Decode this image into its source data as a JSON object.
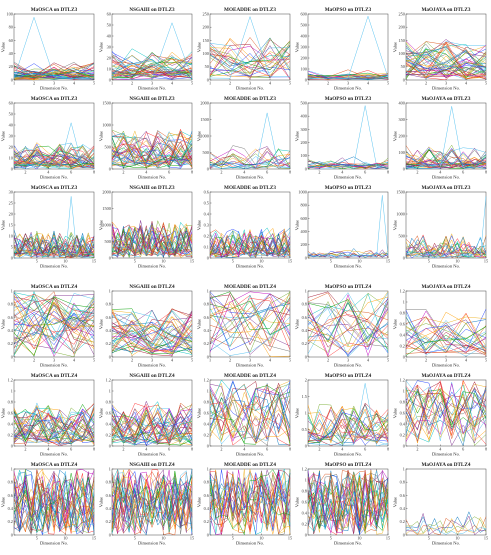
{
  "chart_data": {
    "type": "line",
    "xlabel": "Dimension No.",
    "ylabel": "Value",
    "colors": [
      "#0072BD",
      "#D95319",
      "#EDB120",
      "#7E2F8E",
      "#77AC30",
      "#4DBEEE",
      "#A2142F",
      "#1f3fff",
      "#ff3030",
      "#00a000",
      "#ff9f00",
      "#00c0c0",
      "#c000c0",
      "#707070"
    ],
    "panels": [
      {
        "title": "MaOSCA on DTLZ3",
        "row": 0,
        "col": 0,
        "dims": 5,
        "ylim": [
          0,
          100
        ],
        "yticks": [
          0,
          20,
          40,
          60,
          80,
          100
        ],
        "xticks": [
          1,
          2,
          3,
          4,
          5
        ],
        "n_series": 40,
        "spread": 0.25,
        "spikes": [
          {
            "x": 2,
            "y": 95
          }
        ]
      },
      {
        "title": "NSGAIII on DTLZ3",
        "row": 0,
        "col": 1,
        "dims": 5,
        "ylim": [
          0,
          60
        ],
        "yticks": [
          0,
          10,
          20,
          30,
          40,
          50,
          60
        ],
        "xticks": [
          1,
          2,
          3,
          4,
          5
        ],
        "n_series": 40,
        "spread": 0.4,
        "spikes": [
          {
            "x": 4,
            "y": 52
          }
        ]
      },
      {
        "title": "MOEADDE on DTLZ3",
        "row": 0,
        "col": 2,
        "dims": 5,
        "ylim": [
          0,
          250
        ],
        "yticks": [
          0,
          50,
          100,
          150,
          200,
          250
        ],
        "xticks": [
          1,
          2,
          3,
          4,
          5
        ],
        "n_series": 25,
        "spread": 0.6,
        "spikes": [
          {
            "x": 3,
            "y": 240
          }
        ]
      },
      {
        "title": "MaOPSO on DTLZ3",
        "row": 0,
        "col": 3,
        "dims": 5,
        "ylim": [
          0,
          600
        ],
        "yticks": [
          0,
          100,
          200,
          300,
          400,
          500,
          600
        ],
        "xticks": [
          1,
          2,
          3,
          4,
          5
        ],
        "n_series": 20,
        "spread": 0.12,
        "spikes": [
          {
            "x": 4,
            "y": 580
          }
        ]
      },
      {
        "title": "MaOJAYA on DTLZ3",
        "row": 0,
        "col": 4,
        "dims": 5,
        "ylim": [
          0,
          250
        ],
        "yticks": [
          0,
          50,
          100,
          150,
          200,
          250
        ],
        "xticks": [
          1,
          2,
          3,
          4,
          5
        ],
        "n_series": 45,
        "spread": 0.55,
        "spikes": []
      },
      {
        "title": "MaOSCA on DTLZ3",
        "row": 1,
        "col": 0,
        "dims": 8,
        "ylim": [
          0,
          60
        ],
        "yticks": [
          0,
          10,
          20,
          30,
          40,
          50,
          60
        ],
        "xticks": [
          2,
          4,
          6,
          8
        ],
        "n_series": 40,
        "spread": 0.35,
        "spikes": [
          {
            "x": 6,
            "y": 42
          }
        ]
      },
      {
        "title": "NSGAIII on DTLZ3",
        "row": 1,
        "col": 1,
        "dims": 8,
        "ylim": [
          0,
          1500
        ],
        "yticks": [
          0,
          500,
          1000,
          1500
        ],
        "xticks": [
          2,
          4,
          6,
          8
        ],
        "n_series": 40,
        "spread": 0.55,
        "spikes": []
      },
      {
        "title": "MOEADDE on DTLZ3",
        "row": 1,
        "col": 2,
        "dims": 8,
        "ylim": [
          0,
          2000
        ],
        "yticks": [
          0,
          500,
          1000,
          1500,
          2000
        ],
        "xticks": [
          2,
          4,
          6,
          8
        ],
        "n_series": 15,
        "spread": 0.3,
        "spikes": [
          {
            "x": 6,
            "y": 1700
          }
        ]
      },
      {
        "title": "MaOPSO on DTLZ3",
        "row": 1,
        "col": 3,
        "dims": 8,
        "ylim": [
          0,
          500
        ],
        "yticks": [
          0,
          100,
          200,
          300,
          400,
          500
        ],
        "xticks": [
          2,
          4,
          6,
          8
        ],
        "n_series": 15,
        "spread": 0.15,
        "spikes": [
          {
            "x": 6,
            "y": 480
          }
        ]
      },
      {
        "title": "MaOJAYA on DTLZ3",
        "row": 1,
        "col": 4,
        "dims": 8,
        "ylim": [
          0,
          400
        ],
        "yticks": [
          0,
          100,
          200,
          300,
          400
        ],
        "xticks": [
          2,
          4,
          6,
          8
        ],
        "n_series": 30,
        "spread": 0.3,
        "spikes": [
          {
            "x": 5,
            "y": 380
          }
        ]
      },
      {
        "title": "MaOSCA on DTLZ3",
        "row": 2,
        "col": 0,
        "dims": 15,
        "ylim": [
          0,
          30
        ],
        "yticks": [
          0,
          5,
          10,
          15,
          20,
          25,
          30
        ],
        "xticks": [
          5,
          10,
          15
        ],
        "n_series": 35,
        "spread": 0.35,
        "spikes": [
          {
            "x": 11,
            "y": 28
          }
        ]
      },
      {
        "title": "NSGAIII on DTLZ3",
        "row": 2,
        "col": 1,
        "dims": 15,
        "ylim": [
          0,
          2000
        ],
        "yticks": [
          0,
          500,
          1000,
          1500,
          2000
        ],
        "xticks": [
          5,
          10,
          15
        ],
        "n_series": 35,
        "spread": 0.5,
        "spikes": []
      },
      {
        "title": "MOEADDE on DTLZ3",
        "row": 2,
        "col": 2,
        "dims": 15,
        "ylim": [
          0,
          0.6
        ],
        "yticks": [
          0,
          0.1,
          0.2,
          0.3,
          0.4,
          0.5,
          0.6
        ],
        "xticks": [
          5,
          10,
          15
        ],
        "n_series": 30,
        "spread": 0.4,
        "spikes": []
      },
      {
        "title": "MaOPSO on DTLZ3",
        "row": 2,
        "col": 3,
        "dims": 15,
        "ylim": [
          0,
          1000
        ],
        "yticks": [
          0,
          200,
          400,
          600,
          800,
          1000
        ],
        "xticks": [
          5,
          10,
          15
        ],
        "n_series": 8,
        "spread": 0.1,
        "spikes": [
          {
            "x": 14,
            "y": 950
          }
        ]
      },
      {
        "title": "MaOJAYA on DTLZ3",
        "row": 2,
        "col": 4,
        "dims": 15,
        "ylim": [
          0,
          1500
        ],
        "yticks": [
          0,
          500,
          1000,
          1500
        ],
        "xticks": [
          5,
          10,
          15
        ],
        "n_series": 20,
        "spread": 0.3,
        "spikes": [
          {
            "x": 15,
            "y": 1400
          }
        ]
      },
      {
        "title": "MaOSCA on DTLZ4",
        "row": 3,
        "col": 0,
        "dims": 5,
        "ylim": [
          0,
          1
        ],
        "yticks": [
          0,
          0.2,
          0.4,
          0.6,
          0.8,
          1
        ],
        "xticks": [
          1,
          2,
          3,
          4,
          5
        ],
        "n_series": 40,
        "spread": 0.9,
        "spikes": []
      },
      {
        "title": "NSGAIII on DTLZ4",
        "row": 3,
        "col": 1,
        "dims": 5,
        "ylim": [
          0,
          1
        ],
        "yticks": [
          0,
          0.2,
          0.4,
          0.6,
          0.8,
          1
        ],
        "xticks": [
          1,
          2,
          3,
          4,
          5
        ],
        "n_series": 40,
        "spread": 0.7,
        "spikes": []
      },
      {
        "title": "MOEADDE on DTLZ4",
        "row": 3,
        "col": 2,
        "dims": 5,
        "ylim": [
          0,
          1
        ],
        "yticks": [
          0,
          0.2,
          0.4,
          0.6,
          0.8,
          1
        ],
        "xticks": [
          1,
          2,
          3,
          4,
          5
        ],
        "n_series": 25,
        "spread": 0.9,
        "spikes": []
      },
      {
        "title": "MaOPSO on DTLZ4",
        "row": 3,
        "col": 3,
        "dims": 5,
        "ylim": [
          0,
          1
        ],
        "yticks": [
          0,
          0.2,
          0.4,
          0.6,
          0.8,
          1
        ],
        "xticks": [
          1,
          2,
          3,
          4,
          5
        ],
        "n_series": 25,
        "spread": 0.9,
        "spikes": []
      },
      {
        "title": "MaOJAYA on DTLZ4",
        "row": 3,
        "col": 4,
        "dims": 5,
        "ylim": [
          0,
          1.2
        ],
        "yticks": [
          0,
          0.2,
          0.4,
          0.6,
          0.8,
          1,
          1.2
        ],
        "xticks": [
          1,
          2,
          3,
          4,
          5
        ],
        "n_series": 25,
        "spread": 0.7,
        "spikes": []
      },
      {
        "title": "MaOSCA on DTLZ4",
        "row": 4,
        "col": 0,
        "dims": 8,
        "ylim": [
          0,
          1.2
        ],
        "yticks": [
          0,
          0.2,
          0.4,
          0.6,
          0.8,
          1,
          1.2
        ],
        "xticks": [
          2,
          4,
          6,
          8
        ],
        "n_series": 40,
        "spread": 0.6,
        "spikes": []
      },
      {
        "title": "NSGAIII on DTLZ4",
        "row": 4,
        "col": 1,
        "dims": 8,
        "ylim": [
          0,
          1.2
        ],
        "yticks": [
          0,
          0.2,
          0.4,
          0.6,
          0.8,
          1,
          1.2
        ],
        "xticks": [
          2,
          4,
          6,
          8
        ],
        "n_series": 40,
        "spread": 0.6,
        "spikes": []
      },
      {
        "title": "MOEADDE on DTLZ4",
        "row": 4,
        "col": 2,
        "dims": 8,
        "ylim": [
          0,
          1.2
        ],
        "yticks": [
          0,
          0.2,
          0.4,
          0.6,
          0.8,
          1,
          1.2
        ],
        "xticks": [
          2,
          4,
          6,
          8
        ],
        "n_series": 25,
        "spread": 0.9,
        "spikes": []
      },
      {
        "title": "MaOPSO on DTLZ4",
        "row": 4,
        "col": 3,
        "dims": 8,
        "ylim": [
          0,
          2
        ],
        "yticks": [
          0,
          0.5,
          1,
          1.5,
          2
        ],
        "xticks": [
          2,
          4,
          6,
          8
        ],
        "n_series": 25,
        "spread": 0.6,
        "spikes": [
          {
            "x": 6,
            "y": 1.9
          }
        ]
      },
      {
        "title": "MaOJAYA on DTLZ4",
        "row": 4,
        "col": 4,
        "dims": 8,
        "ylim": [
          0,
          1.2
        ],
        "yticks": [
          0,
          0.2,
          0.4,
          0.6,
          0.8,
          1,
          1.2
        ],
        "xticks": [
          2,
          4,
          6,
          8
        ],
        "n_series": 25,
        "spread": 0.8,
        "spikes": []
      },
      {
        "title": "MaOSCA on DTLZ4",
        "row": 5,
        "col": 0,
        "dims": 15,
        "ylim": [
          0,
          1
        ],
        "yticks": [
          0,
          0.2,
          0.4,
          0.6,
          0.8,
          1
        ],
        "xticks": [
          5,
          10,
          15
        ],
        "n_series": 30,
        "spread": 0.9,
        "spikes": []
      },
      {
        "title": "NSGAIII on DTLZ4",
        "row": 5,
        "col": 1,
        "dims": 15,
        "ylim": [
          0,
          1
        ],
        "yticks": [
          0,
          0.2,
          0.4,
          0.6,
          0.8,
          1
        ],
        "xticks": [
          5,
          10,
          15
        ],
        "n_series": 30,
        "spread": 0.9,
        "spikes": []
      },
      {
        "title": "MOEADDE on DTLZ4",
        "row": 5,
        "col": 2,
        "dims": 15,
        "ylim": [
          0,
          1
        ],
        "yticks": [
          0,
          0.2,
          0.4,
          0.6,
          0.8,
          1
        ],
        "xticks": [
          5,
          10,
          15
        ],
        "n_series": 25,
        "spread": 0.9,
        "spikes": []
      },
      {
        "title": "MaOPSO on DTLZ4",
        "row": 5,
        "col": 3,
        "dims": 15,
        "ylim": [
          0,
          1.2
        ],
        "yticks": [
          0,
          0.2,
          0.4,
          0.6,
          0.8,
          1,
          1.2
        ],
        "xticks": [
          5,
          10,
          15
        ],
        "n_series": 30,
        "spread": 0.9,
        "spikes": []
      },
      {
        "title": "MaOJAYA on DTLZ4",
        "row": 5,
        "col": 4,
        "dims": 15,
        "ylim": [
          0,
          1
        ],
        "yticks": [
          0,
          0.2,
          0.4,
          0.6,
          0.8,
          1
        ],
        "xticks": [
          5,
          10,
          15
        ],
        "n_series": 6,
        "spread": 0.3,
        "spikes": []
      }
    ]
  }
}
